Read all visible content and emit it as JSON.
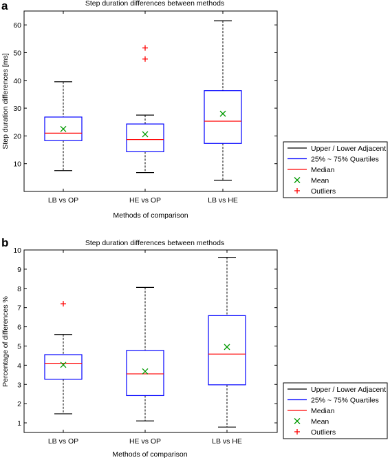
{
  "colors": {
    "whisker": "#000000",
    "box": "#0000ff",
    "median": "#ff0000",
    "mean": "#009900",
    "outlier": "#ff0000"
  },
  "legend": {
    "items": [
      {
        "label": "Upper / Lower Adjacent",
        "marker": "line",
        "color": "#000000"
      },
      {
        "label": "25% ~ 75% Quartiles",
        "marker": "line",
        "color": "#0000ff"
      },
      {
        "label": "Median",
        "marker": "line",
        "color": "#ff0000"
      },
      {
        "label": "Mean",
        "marker": "x",
        "color": "#009900"
      },
      {
        "label": "Outliers",
        "marker": "+",
        "color": "#ff0000"
      }
    ]
  },
  "chart_data": [
    {
      "panel": "a",
      "type": "boxplot",
      "title": "Step duration differences between methods",
      "xlabel": "Methods of comparison",
      "ylabel": "Step duration differences [ms]",
      "ylim": [
        0,
        65
      ],
      "yticks": [
        10,
        20,
        30,
        40,
        50,
        60
      ],
      "legend_position": "right",
      "categories": [
        "LB vs OP",
        "HE vs OP",
        "LB vs HE"
      ],
      "series": [
        {
          "lower_adjacent": 7.5,
          "q1": 18.3,
          "median": 21.0,
          "q3": 26.8,
          "upper_adjacent": 39.5,
          "mean": 22.5,
          "outliers": []
        },
        {
          "lower_adjacent": 6.8,
          "q1": 14.3,
          "median": 18.7,
          "q3": 24.3,
          "upper_adjacent": 27.5,
          "mean": 20.6,
          "outliers": [
            47.7,
            51.7
          ]
        },
        {
          "lower_adjacent": 4.0,
          "q1": 17.3,
          "median": 25.3,
          "q3": 36.3,
          "upper_adjacent": 61.5,
          "mean": 28.0,
          "outliers": []
        }
      ]
    },
    {
      "panel": "b",
      "type": "boxplot",
      "title": "Step duration differences between methods",
      "xlabel": "Methods of comparison",
      "ylabel": "Percentage of differences %",
      "ylim": [
        0.5,
        10
      ],
      "yticks": [
        1,
        2,
        3,
        4,
        5,
        6,
        7,
        8,
        9,
        10
      ],
      "legend_position": "right",
      "categories": [
        "LB vs OP",
        "HE vs OP",
        "LB vs HE"
      ],
      "series": [
        {
          "lower_adjacent": 1.47,
          "q1": 3.27,
          "median": 4.1,
          "q3": 4.55,
          "upper_adjacent": 5.6,
          "mean": 4.02,
          "outliers": [
            7.2
          ]
        },
        {
          "lower_adjacent": 1.1,
          "q1": 2.42,
          "median": 3.55,
          "q3": 4.77,
          "upper_adjacent": 8.05,
          "mean": 3.68,
          "outliers": []
        },
        {
          "lower_adjacent": 0.78,
          "q1": 2.98,
          "median": 4.58,
          "q3": 6.58,
          "upper_adjacent": 9.62,
          "mean": 4.95,
          "outliers": []
        }
      ]
    }
  ]
}
